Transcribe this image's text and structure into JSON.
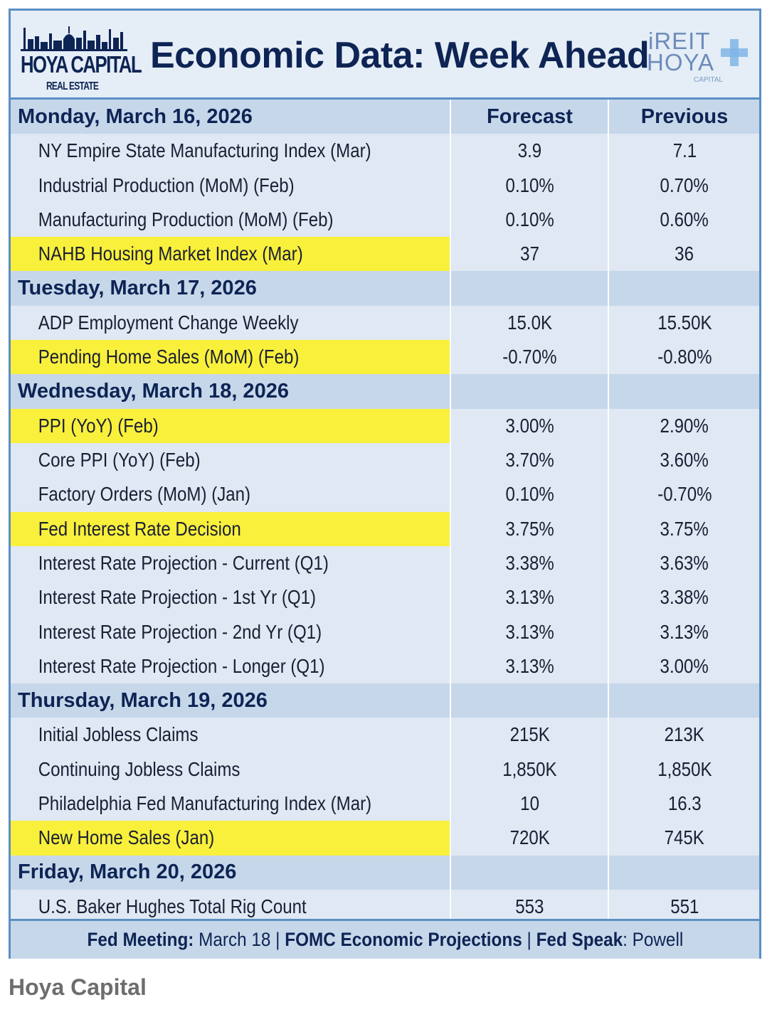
{
  "header": {
    "logo_left_brand": "HOYA CAPITAL",
    "logo_left_sub": "REAL ESTATE",
    "title": "Economic Data: Week Ahead",
    "logo_right_l1": "iREIT",
    "logo_right_l2": "HOYA",
    "logo_right_l3": "CAPITAL"
  },
  "columns": {
    "forecast": "Forecast",
    "previous": "Previous"
  },
  "colors": {
    "accent": "#0d2454",
    "highlight": "#f9f03c",
    "border": "#5b8fc4",
    "day_row": "#c6d7ea",
    "body_row": "#dfe8f3"
  },
  "days": [
    {
      "date": "Monday, March 16, 2026",
      "rows": [
        {
          "label": "NY Empire State Manufacturing Index (Mar)",
          "forecast": "3.9",
          "previous": "7.1",
          "highlight": false
        },
        {
          "label": "Industrial Production (MoM) (Feb)",
          "forecast": "0.10%",
          "previous": "0.70%",
          "highlight": false
        },
        {
          "label": "Manufacturing Production (MoM) (Feb)",
          "forecast": "0.10%",
          "previous": "0.60%",
          "highlight": false
        },
        {
          "label": "NAHB Housing Market Index (Mar)",
          "forecast": "37",
          "previous": "36",
          "highlight": true
        }
      ]
    },
    {
      "date": "Tuesday, March 17, 2026",
      "rows": [
        {
          "label": "ADP Employment Change Weekly",
          "forecast": "15.0K",
          "previous": "15.50K",
          "highlight": false
        },
        {
          "label": "Pending Home Sales (MoM) (Feb)",
          "forecast": "-0.70%",
          "previous": "-0.80%",
          "highlight": true
        }
      ]
    },
    {
      "date": "Wednesday, March 18, 2026",
      "rows": [
        {
          "label": "PPI (YoY) (Feb)",
          "forecast": "3.00%",
          "previous": "2.90%",
          "highlight": true
        },
        {
          "label": "Core PPI (YoY) (Feb)",
          "forecast": "3.70%",
          "previous": "3.60%",
          "highlight": false
        },
        {
          "label": "Factory Orders (MoM) (Jan)",
          "forecast": "0.10%",
          "previous": "-0.70%",
          "highlight": false
        },
        {
          "label": "Fed Interest Rate Decision",
          "forecast": "3.75%",
          "previous": "3.75%",
          "highlight": true
        },
        {
          "label": "Interest Rate Projection - Current (Q1)",
          "forecast": "3.38%",
          "previous": "3.63%",
          "highlight": false
        },
        {
          "label": "Interest Rate Projection - 1st Yr (Q1)",
          "forecast": "3.13%",
          "previous": "3.38%",
          "highlight": false
        },
        {
          "label": "Interest Rate Projection - 2nd Yr (Q1)",
          "forecast": "3.13%",
          "previous": "3.13%",
          "highlight": false
        },
        {
          "label": "Interest Rate Projection - Longer (Q1)",
          "forecast": "3.13%",
          "previous": "3.00%",
          "highlight": false
        }
      ]
    },
    {
      "date": "Thursday, March 19, 2026",
      "rows": [
        {
          "label": "Initial Jobless Claims",
          "forecast": "215K",
          "previous": "213K",
          "highlight": false
        },
        {
          "label": "Continuing Jobless Claims",
          "forecast": "1,850K",
          "previous": "1,850K",
          "highlight": false
        },
        {
          "label": "Philadelphia Fed Manufacturing Index (Mar)",
          "forecast": "10",
          "previous": "16.3",
          "highlight": false
        },
        {
          "label": "New Home Sales (Jan)",
          "forecast": "720K",
          "previous": "745K",
          "highlight": true
        }
      ]
    },
    {
      "date": "Friday, March 20, 2026",
      "rows": [
        {
          "label": "U.S. Baker Hughes Total Rig Count",
          "forecast": "553",
          "previous": "551",
          "highlight": false
        }
      ]
    }
  ],
  "footer": {
    "fed_meeting_label": "Fed Meeting:",
    "fed_meeting_value": " March 18 | ",
    "fomc": "FOMC Economic Projections",
    "sep": " | ",
    "fed_speak_label": "Fed Speak",
    "fed_speak_value": ": Powell"
  },
  "caption": "Hoya Capital"
}
